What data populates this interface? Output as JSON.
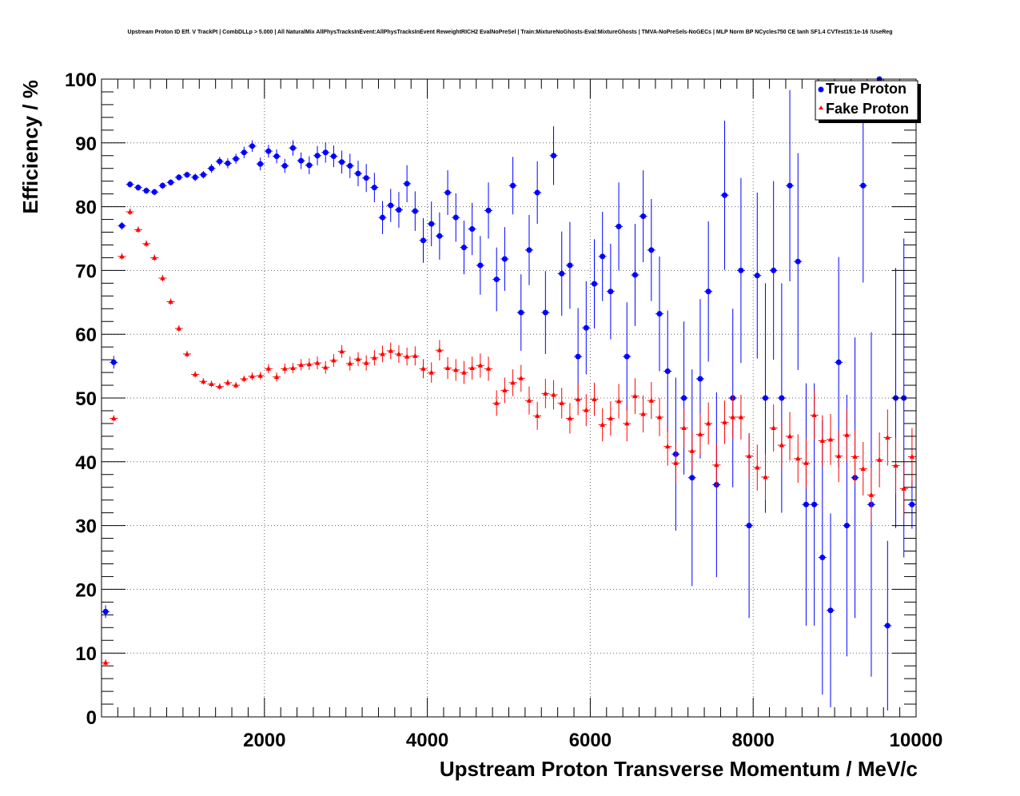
{
  "chart_data": {
    "type": "scatter",
    "title": "Upstream Proton ID Eff. V TrackPt | CombDLLp > 5.000 | All NaturalMix AllPhysTracksInEvent:AllPhysTracksInEvent ReweightRICH2 EvalNoPreSel | Train:MixtureNoGhosts-Eval:MixtureGhosts | TMVA-NoPreSels-NoGECs | MLP Norm BP NCycles750 CE tanh SF1.4 CVTest15:1e-16 !UseReg",
    "xlabel": "Upstream Proton Transverse Momentum / MeV/c",
    "ylabel": "Efficiency / %",
    "xlim": [
      0,
      10000
    ],
    "ylim": [
      0,
      100
    ],
    "xticks": [
      2000,
      4000,
      6000,
      8000,
      10000
    ],
    "yticks": [
      0,
      10,
      20,
      30,
      40,
      50,
      60,
      70,
      80,
      90,
      100
    ],
    "grid": true,
    "legend_position": "top-right",
    "series": [
      {
        "name": "True Proton",
        "color": "#0000ff",
        "marker": "circle",
        "x": [
          50,
          150,
          250,
          350,
          450,
          550,
          650,
          750,
          850,
          950,
          1050,
          1150,
          1250,
          1350,
          1450,
          1550,
          1650,
          1750,
          1850,
          1950,
          2050,
          2150,
          2250,
          2350,
          2450,
          2550,
          2650,
          2750,
          2850,
          2950,
          3050,
          3150,
          3250,
          3350,
          3450,
          3550,
          3650,
          3750,
          3850,
          3950,
          4050,
          4150,
          4250,
          4350,
          4450,
          4550,
          4650,
          4750,
          4850,
          4950,
          5050,
          5150,
          5250,
          5350,
          5450,
          5550,
          5650,
          5750,
          5850,
          5950,
          6050,
          6150,
          6250,
          6350,
          6450,
          6550,
          6650,
          6750,
          6850,
          6950,
          7050,
          7150,
          7250,
          7350,
          7450,
          7550,
          7650,
          7750,
          7850,
          7950,
          8050,
          8150,
          8250,
          8350,
          8450,
          8550,
          8650,
          8750,
          8850,
          8950,
          9050,
          9150,
          9250,
          9350,
          9450,
          9550,
          9650,
          9750,
          9850,
          9950
        ],
        "y": [
          16.5,
          55.6,
          77,
          83.5,
          83,
          82.5,
          82.3,
          83.3,
          83.8,
          84.6,
          85,
          84.6,
          85,
          86,
          87.1,
          86.8,
          87.5,
          88.5,
          89.5,
          86.7,
          88.7,
          87.9,
          86.4,
          89.2,
          87.2,
          86.5,
          88,
          88.5,
          87.9,
          87,
          86.4,
          85.2,
          84.5,
          83,
          78.3,
          80.2,
          79.5,
          83.6,
          79.3,
          74.7,
          77.3,
          75.4,
          82.2,
          78.3,
          73.6,
          76.5,
          70.8,
          79.4,
          68.6,
          71.8,
          83.3,
          63.4,
          73.2,
          82.2,
          63.4,
          88,
          69.5,
          70.8,
          56.5,
          61,
          67.9,
          72.2,
          66.7,
          76.9,
          56.5,
          69.3,
          78.5,
          73.2,
          63.2,
          54.2,
          41.2,
          50,
          37.5,
          53,
          66.7,
          36.4,
          81.8,
          50,
          70,
          30,
          69.2,
          50,
          70,
          50,
          83.3,
          71.4,
          33.3,
          33.3,
          25,
          16.7,
          55.6,
          30,
          37.5,
          83.3,
          33.3,
          100,
          14.3,
          50,
          50,
          33.3
        ],
        "yerr": [
          1.0,
          1.0,
          0.6,
          0.5,
          0.5,
          0.5,
          0.5,
          0.5,
          0.5,
          0.5,
          0.5,
          0.6,
          0.6,
          0.7,
          0.7,
          0.8,
          0.8,
          0.9,
          0.9,
          1.0,
          1.0,
          1.1,
          1.1,
          1.2,
          1.3,
          1.4,
          1.5,
          1.6,
          1.7,
          1.8,
          1.9,
          2.0,
          2.2,
          2.3,
          2.6,
          2.6,
          2.8,
          2.9,
          3.1,
          3.5,
          3.5,
          3.7,
          3.5,
          3.8,
          4.2,
          4.1,
          4.6,
          4.4,
          5.0,
          5.0,
          4.5,
          6.0,
          5.5,
          4.9,
          6.5,
          4.6,
          6.6,
          6.8,
          7.6,
          7.3,
          7.0,
          7.0,
          7.5,
          6.9,
          8.5,
          8.0,
          7.2,
          8.0,
          9.0,
          9.5,
          12.0,
          12.0,
          17.0,
          12.5,
          11.0,
          14.5,
          11.7,
          14.0,
          14.5,
          14.5,
          13.0,
          18.0,
          14.0,
          18.0,
          15.0,
          17.0,
          19.0,
          19.0,
          21.5,
          15.2,
          16.5,
          20.5,
          22.0,
          15.2,
          27.0,
          0,
          13.3,
          20.4,
          25.0,
          3.8
        ]
      },
      {
        "name": "Fake Proton",
        "color": "#ff0000",
        "marker": "triangle",
        "x": [
          50,
          150,
          250,
          350,
          450,
          550,
          650,
          750,
          850,
          950,
          1050,
          1150,
          1250,
          1350,
          1450,
          1550,
          1650,
          1750,
          1850,
          1950,
          2050,
          2150,
          2250,
          2350,
          2450,
          2550,
          2650,
          2750,
          2850,
          2950,
          3050,
          3150,
          3250,
          3350,
          3450,
          3550,
          3650,
          3750,
          3850,
          3950,
          4050,
          4150,
          4250,
          4350,
          4450,
          4550,
          4650,
          4750,
          4850,
          4950,
          5050,
          5150,
          5250,
          5350,
          5450,
          5550,
          5650,
          5750,
          5850,
          5950,
          6050,
          6150,
          6250,
          6350,
          6450,
          6550,
          6650,
          6750,
          6850,
          6950,
          7050,
          7150,
          7250,
          7350,
          7450,
          7550,
          7650,
          7750,
          7850,
          7950,
          8050,
          8150,
          8250,
          8350,
          8450,
          8550,
          8650,
          8750,
          8850,
          8950,
          9050,
          9150,
          9250,
          9350,
          9450,
          9550,
          9650,
          9750,
          9850,
          9950
        ],
        "y": [
          8.5,
          46.8,
          72.2,
          79.2,
          76.4,
          74.2,
          72,
          68.8,
          65.1,
          60.9,
          56.9,
          53.7,
          52.6,
          52.2,
          51.8,
          52.4,
          52,
          53,
          53.4,
          53.5,
          54.6,
          53.3,
          54.6,
          54.7,
          55.2,
          55.3,
          55.5,
          54.8,
          55.9,
          57.3,
          55.4,
          56.1,
          55.5,
          56.3,
          56.9,
          57.4,
          56.9,
          56.5,
          56.6,
          54.6,
          54,
          57.5,
          54.7,
          54.4,
          54,
          54.7,
          55.1,
          54.6,
          49.2,
          51.2,
          52.4,
          53.1,
          49.6,
          47.2,
          50.7,
          50.5,
          49.2,
          46.8,
          49.8,
          48.1,
          49.8,
          45.8,
          46.8,
          49.5,
          46,
          50.3,
          47.5,
          49.6,
          47,
          42.4,
          39.8,
          45.3,
          41.7,
          44.3,
          46,
          39.5,
          46.2,
          47,
          47,
          40.9,
          39.1,
          37.6,
          45.3,
          42.6,
          44,
          40.5,
          39.8,
          47.3,
          43.3,
          43.5,
          40.9,
          44.2,
          40.8,
          38.9,
          34.8,
          40.3,
          43.8,
          39.4,
          35.8,
          40.8
        ],
        "yerr": [
          0.5,
          0.5,
          0.5,
          0.5,
          0.5,
          0.5,
          0.5,
          0.5,
          0.5,
          0.5,
          0.5,
          0.5,
          0.5,
          0.5,
          0.5,
          0.5,
          0.5,
          0.5,
          0.6,
          0.6,
          0.7,
          0.7,
          0.8,
          0.8,
          0.9,
          0.9,
          1.0,
          1.0,
          1.0,
          1.0,
          1.1,
          1.1,
          1.2,
          1.2,
          1.3,
          1.3,
          1.4,
          1.4,
          1.5,
          1.5,
          1.6,
          1.6,
          1.7,
          1.7,
          1.8,
          1.8,
          1.9,
          1.9,
          2.0,
          2.0,
          2.1,
          2.1,
          2.2,
          2.2,
          2.3,
          2.3,
          2.4,
          2.4,
          2.5,
          2.5,
          2.6,
          2.6,
          2.7,
          2.7,
          2.8,
          2.8,
          2.9,
          2.9,
          3.0,
          3.0,
          3.1,
          3.1,
          3.2,
          3.2,
          3.3,
          3.3,
          3.4,
          3.4,
          3.5,
          3.5,
          3.6,
          3.6,
          3.7,
          3.7,
          3.8,
          3.8,
          3.9,
          3.9,
          4.0,
          4.0,
          4.1,
          4.1,
          4.2,
          4.2,
          4.3,
          4.3,
          4.4,
          4.4,
          4.5,
          4.5
        ]
      }
    ]
  }
}
